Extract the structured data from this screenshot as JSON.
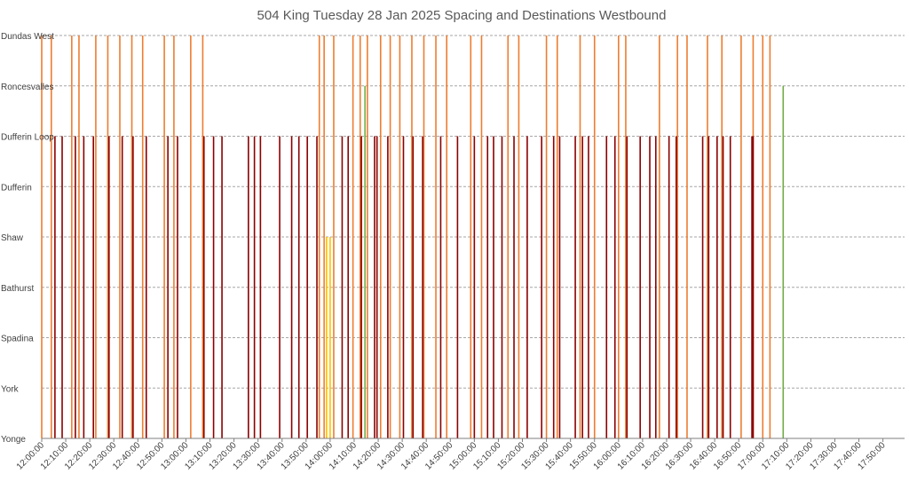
{
  "chart_data": {
    "type": "bar",
    "title": "504 King Tuesday 28 Jan 2025 Spacing and Destinations Westbound",
    "xlabel": "",
    "ylabel": "",
    "x_range": [
      "12:00:00",
      "17:59:00"
    ],
    "x_tick_labels": [
      "12:00:00",
      "12:10:00",
      "12:20:00",
      "12:30:00",
      "12:40:00",
      "12:50:00",
      "13:00:00",
      "13:10:00",
      "13:20:00",
      "13:30:00",
      "13:40:00",
      "13:50:00",
      "14:00:00",
      "14:10:00",
      "14:20:00",
      "14:30:00",
      "14:40:00",
      "14:50:00",
      "15:00:00",
      "15:10:00",
      "15:20:00",
      "15:30:00",
      "15:40:00",
      "15:50:00",
      "16:00:00",
      "16:10:00",
      "16:20:00",
      "16:30:00",
      "16:40:00",
      "16:50:00",
      "17:00:00",
      "17:10:00",
      "17:20:00",
      "17:30:00",
      "17:40:00",
      "17:50:00"
    ],
    "y_categories": [
      "Yonge",
      "York",
      "Spadina",
      "Bathurst",
      "Shaw",
      "Dufferin",
      "Dufferin Loop",
      "Roncesvalles",
      "Dundas West"
    ],
    "grid": true,
    "legend": "none",
    "colors": {
      "Dundas West": "#ed7d31",
      "Roncesvalles": "#70ad47",
      "Dufferin Loop": "#8b0000",
      "Shaw": "#ffc000"
    },
    "series": [
      {
        "destination": "Dundas West",
        "times": [
          "12:00:00",
          "12:04:00",
          "12:12:30",
          "12:15:30",
          "12:22:30",
          "12:27:30",
          "12:32:30",
          "12:37:30",
          "12:42:00",
          "12:51:00",
          "12:55:00",
          "13:02:00",
          "13:07:00",
          "13:55:30",
          "13:57:30",
          "14:01:30",
          "14:09:30",
          "14:12:30",
          "14:15:30",
          "14:21:00",
          "14:25:00",
          "14:29:00",
          "14:34:00",
          "14:39:00",
          "14:44:00",
          "14:48:30",
          "14:58:30",
          "15:03:00",
          "15:14:00",
          "15:18:30",
          "15:30:00",
          "15:34:30",
          "15:44:00",
          "15:50:00",
          "16:00:00",
          "16:03:00",
          "16:17:00",
          "16:24:30",
          "16:28:30",
          "16:37:00",
          "16:43:00",
          "16:51:00",
          "16:56:00",
          "17:00:00",
          "17:03:00"
        ],
        "value": "Dundas West"
      },
      {
        "destination": "Roncesvalles",
        "times": [
          "14:14:30",
          "17:08:30"
        ],
        "value": "Roncesvalles"
      },
      {
        "destination": "Dufferin Loop",
        "times": [
          "12:05:30",
          "12:08:30",
          "12:14:00",
          "12:17:30",
          "12:21:30",
          "12:28:00",
          "12:33:30",
          "12:38:00",
          "12:43:30",
          "12:52:30",
          "12:56:30",
          "13:07:30",
          "13:11:30",
          "13:15:00",
          "13:26:00",
          "13:28:30",
          "13:31:00",
          "13:39:00",
          "13:44:00",
          "13:47:00",
          "13:50:30",
          "13:54:30",
          "14:05:00",
          "14:07:30",
          "14:13:00",
          "14:18:30",
          "14:19:30",
          "14:24:00",
          "14:30:30",
          "14:34:30",
          "14:38:30",
          "14:46:00",
          "14:53:00",
          "15:00:00",
          "15:05:30",
          "15:08:00",
          "15:11:30",
          "15:16:30",
          "15:22:00",
          "15:28:00",
          "15:33:00",
          "15:35:30",
          "15:42:00",
          "15:45:00",
          "15:47:30",
          "15:55:00",
          "15:58:30",
          "16:03:30",
          "16:09:00",
          "16:13:00",
          "16:15:30",
          "16:21:00",
          "16:24:00",
          "16:35:00",
          "16:37:30",
          "16:41:00",
          "16:43:30",
          "16:46:30",
          "16:55:30",
          "16:56:00"
        ],
        "value": "Dufferin Loop"
      },
      {
        "destination": "Shaw",
        "times": [
          "13:58:30",
          "14:00:00"
        ],
        "value": "Shaw"
      }
    ]
  }
}
